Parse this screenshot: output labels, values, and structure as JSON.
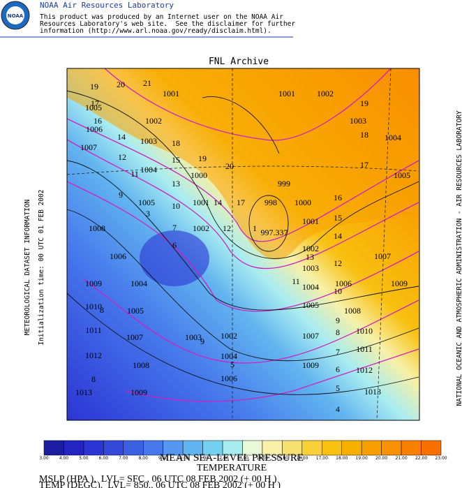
{
  "header": {
    "logo_text": "NOAA",
    "title": "NOAA Air Resources Laboratory",
    "lines": [
      "This product was produced by an Internet user on the NOAA Air",
      "Resources Laboratory's web site.  See the disclaimer for further",
      "information (http://www.arl.noaa.gov/ready/disclaim.html)."
    ]
  },
  "map": {
    "title": "FNL Archive",
    "left_text": "METEOROLOGICAL DATASET INFORMATION",
    "left_text2": "Initialization time: 00 UTC 01 FEB 2002",
    "right_text": "NATIONAL OCEANIC AND ATMOSPHERIC ADMINISTRATION - AIR RESOURCES LABORATORY",
    "contour_labels": [
      "19",
      "20",
      "21",
      "1001",
      "1001",
      "1002",
      "19",
      "17",
      "1005",
      "16",
      "1002",
      "1003",
      "1006",
      "14",
      "1003",
      "18",
      "18",
      "1004",
      "1007",
      "12",
      "15",
      "19",
      "20",
      "17",
      "1004",
      "11",
      "1000",
      "13",
      "999",
      "1005",
      "9",
      "1005",
      "1001",
      "14",
      "17",
      "998",
      "1000",
      "16",
      "10",
      "3",
      "1001",
      "15",
      "1008",
      "7",
      "1002",
      "12",
      "1",
      "997.337",
      "14",
      "6",
      "1002",
      "1006",
      "13",
      "1007",
      "1003",
      "12",
      "1009",
      "1004",
      "1004",
      "11",
      "1006",
      "1009",
      "10",
      "1005",
      "1010",
      "8",
      "1005",
      "9",
      "1008",
      "1011",
      "1007",
      "1003",
      "9",
      "1002",
      "1007",
      "8",
      "1010",
      "1012",
      "1004",
      "7",
      "1011",
      "1008",
      "5",
      "1006",
      "1009",
      "6",
      "1012",
      "8",
      "1013",
      "1009",
      "5",
      "1013",
      "4"
    ]
  },
  "colorbar": {
    "labels": [
      "3.00",
      "4.00",
      "5.00",
      "6.00",
      "7.00",
      "8.00",
      "9.00",
      "10.00",
      "11.00",
      "12.00",
      "13.00",
      "14.00",
      "15.00",
      "16.00",
      "17.00",
      "18.00",
      "19.00",
      "20.00",
      "21.00",
      "22.00",
      "23.00"
    ],
    "colors": [
      "#1c1ca0",
      "#2424c0",
      "#2c34d4",
      "#3448dc",
      "#3c60e4",
      "#4678ec",
      "#5496f0",
      "#62b4f0",
      "#74d0f0",
      "#a8ecf0",
      "#e8f8d8",
      "#f8f0a8",
      "#f8e070",
      "#f8d038",
      "#f8c010",
      "#f8b000",
      "#f8a000",
      "#f89000",
      "#f88000",
      "#f87000"
    ]
  },
  "footer": {
    "line1": "MEAN SEA-LEVEL PRESSURE",
    "line2": "TEMPERATURE",
    "line3": "MSLP (HPA ),  LVL= SFC , 06 UTC 08 FEB 2002 (+ 00 H )",
    "line4": "TEMP (DEGC),  LVL= 850., 06 UTC 08 FEB 2002 (+ 00 H )"
  }
}
